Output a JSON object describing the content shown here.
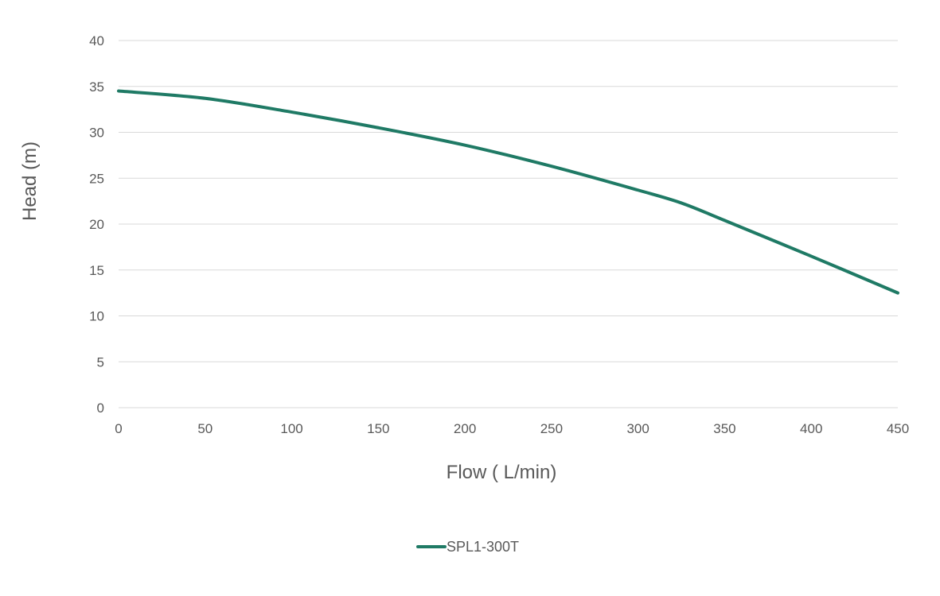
{
  "colors": {
    "series": "#1f7a65",
    "grid": "#d9d9d9",
    "text": "#595959",
    "background": "#ffffff"
  },
  "chart_data": {
    "type": "line",
    "title": "",
    "xlabel": "Flow ( L/min)",
    "ylabel": "Head (m)",
    "xlim": [
      0,
      450
    ],
    "ylim": [
      0,
      40
    ],
    "x_ticks": [
      0,
      50,
      100,
      150,
      200,
      250,
      300,
      350,
      400,
      450
    ],
    "y_ticks": [
      0,
      5,
      10,
      15,
      20,
      25,
      30,
      35,
      40
    ],
    "grid": "horizontal",
    "legend": "bottom-center",
    "series": [
      {
        "name": "SPL1-300T",
        "color": "#1f7a65",
        "points": [
          [
            0,
            34.5
          ],
          [
            50,
            33.7
          ],
          [
            100,
            32.2
          ],
          [
            150,
            30.5
          ],
          [
            200,
            28.6
          ],
          [
            250,
            26.3
          ],
          [
            300,
            23.7
          ],
          [
            325,
            22.3
          ],
          [
            350,
            20.4
          ],
          [
            400,
            16.5
          ],
          [
            450,
            12.5
          ]
        ]
      }
    ]
  }
}
